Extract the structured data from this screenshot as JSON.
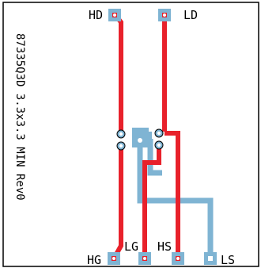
{
  "board": {
    "vertical_label": "87335Q3D 3.3x3.3 MIN Rev0",
    "pads": {
      "hd": "HD",
      "ld": "LD",
      "hg": "HG",
      "lg": "LG",
      "hs": "HS",
      "ls": "LS"
    }
  },
  "colors": {
    "top_trace": "#e8212b",
    "bottom_trace": "#7fb4d3",
    "pad": "#7fb4d3",
    "drill": "#ffffff",
    "outline": "#000000"
  }
}
